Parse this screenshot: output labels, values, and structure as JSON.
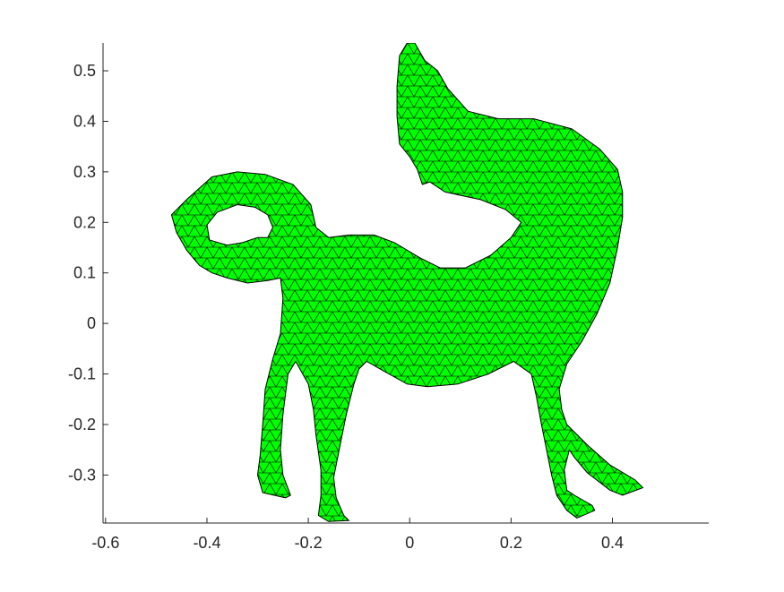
{
  "figure": {
    "background": "#ffffff",
    "mesh_fill": "#00ff00",
    "mesh_edge": "#000000",
    "axis_color": "#262626"
  },
  "axes": {
    "xlim": [
      -0.605,
      0.59
    ],
    "ylim": [
      -0.395,
      0.555
    ],
    "x_ticks": [
      {
        "value": -0.6,
        "label": "-0.6"
      },
      {
        "value": -0.4,
        "label": "-0.4"
      },
      {
        "value": -0.2,
        "label": "-0.2"
      },
      {
        "value": 0,
        "label": "0"
      },
      {
        "value": 0.2,
        "label": "0.2"
      },
      {
        "value": 0.4,
        "label": "0.4"
      }
    ],
    "y_ticks": [
      {
        "value": 0.5,
        "label": "0.5"
      },
      {
        "value": 0.4,
        "label": "0.4"
      },
      {
        "value": 0.3,
        "label": "0.3"
      },
      {
        "value": 0.2,
        "label": "0.2"
      },
      {
        "value": 0.1,
        "label": "0.1"
      },
      {
        "value": 0,
        "label": "0"
      },
      {
        "value": -0.1,
        "label": "-0.1"
      },
      {
        "value": -0.2,
        "label": "-0.2"
      },
      {
        "value": -0.3,
        "label": "-0.3"
      }
    ]
  },
  "shape": {
    "name": "triangulated horse mesh",
    "outline": [
      [
        -0.47,
        0.215
      ],
      [
        -0.44,
        0.245
      ],
      [
        -0.39,
        0.29
      ],
      [
        -0.34,
        0.3
      ],
      [
        -0.285,
        0.295
      ],
      [
        -0.23,
        0.275
      ],
      [
        -0.195,
        0.235
      ],
      [
        -0.185,
        0.19
      ],
      [
        -0.16,
        0.17
      ],
      [
        -0.12,
        0.175
      ],
      [
        -0.07,
        0.175
      ],
      [
        -0.03,
        0.16
      ],
      [
        0.02,
        0.13
      ],
      [
        0.06,
        0.11
      ],
      [
        0.11,
        0.11
      ],
      [
        0.16,
        0.135
      ],
      [
        0.2,
        0.17
      ],
      [
        0.22,
        0.2
      ],
      [
        0.19,
        0.225
      ],
      [
        0.14,
        0.245
      ],
      [
        0.07,
        0.26
      ],
      [
        0.04,
        0.28
      ],
      [
        0.025,
        0.275
      ],
      [
        0.015,
        0.305
      ],
      [
        0.0,
        0.33
      ],
      [
        -0.02,
        0.355
      ],
      [
        -0.025,
        0.41
      ],
      [
        -0.025,
        0.47
      ],
      [
        -0.02,
        0.53
      ],
      [
        -0.005,
        0.555
      ],
      [
        0.01,
        0.555
      ],
      [
        0.03,
        0.52
      ],
      [
        0.055,
        0.5
      ],
      [
        0.075,
        0.465
      ],
      [
        0.115,
        0.42
      ],
      [
        0.175,
        0.405
      ],
      [
        0.245,
        0.405
      ],
      [
        0.32,
        0.385
      ],
      [
        0.375,
        0.345
      ],
      [
        0.41,
        0.305
      ],
      [
        0.42,
        0.26
      ],
      [
        0.42,
        0.21
      ],
      [
        0.41,
        0.15
      ],
      [
        0.395,
        0.08
      ],
      [
        0.37,
        0.02
      ],
      [
        0.34,
        -0.035
      ],
      [
        0.31,
        -0.08
      ],
      [
        0.295,
        -0.13
      ],
      [
        0.3,
        -0.17
      ],
      [
        0.31,
        -0.2
      ],
      [
        0.35,
        -0.24
      ],
      [
        0.395,
        -0.28
      ],
      [
        0.445,
        -0.31
      ],
      [
        0.46,
        -0.325
      ],
      [
        0.42,
        -0.34
      ],
      [
        0.395,
        -0.33
      ],
      [
        0.35,
        -0.295
      ],
      [
        0.325,
        -0.265
      ],
      [
        0.315,
        -0.25
      ],
      [
        0.305,
        -0.29
      ],
      [
        0.31,
        -0.33
      ],
      [
        0.325,
        -0.34
      ],
      [
        0.36,
        -0.36
      ],
      [
        0.365,
        -0.37
      ],
      [
        0.33,
        -0.385
      ],
      [
        0.31,
        -0.37
      ],
      [
        0.29,
        -0.34
      ],
      [
        0.28,
        -0.3
      ],
      [
        0.27,
        -0.25
      ],
      [
        0.26,
        -0.2
      ],
      [
        0.25,
        -0.145
      ],
      [
        0.24,
        -0.1
      ],
      [
        0.205,
        -0.075
      ],
      [
        0.155,
        -0.1
      ],
      [
        0.095,
        -0.12
      ],
      [
        0.035,
        -0.125
      ],
      [
        -0.005,
        -0.12
      ],
      [
        -0.05,
        -0.095
      ],
      [
        -0.085,
        -0.075
      ],
      [
        -0.1,
        -0.09
      ],
      [
        -0.11,
        -0.12
      ],
      [
        -0.125,
        -0.18
      ],
      [
        -0.14,
        -0.255
      ],
      [
        -0.15,
        -0.305
      ],
      [
        -0.145,
        -0.345
      ],
      [
        -0.13,
        -0.38
      ],
      [
        -0.12,
        -0.39
      ],
      [
        -0.16,
        -0.392
      ],
      [
        -0.18,
        -0.38
      ],
      [
        -0.175,
        -0.34
      ],
      [
        -0.175,
        -0.29
      ],
      [
        -0.185,
        -0.22
      ],
      [
        -0.19,
        -0.17
      ],
      [
        -0.2,
        -0.12
      ],
      [
        -0.225,
        -0.075
      ],
      [
        -0.24,
        -0.1
      ],
      [
        -0.25,
        -0.18
      ],
      [
        -0.255,
        -0.25
      ],
      [
        -0.25,
        -0.3
      ],
      [
        -0.235,
        -0.34
      ],
      [
        -0.245,
        -0.345
      ],
      [
        -0.29,
        -0.335
      ],
      [
        -0.3,
        -0.3
      ],
      [
        -0.295,
        -0.26
      ],
      [
        -0.29,
        -0.2
      ],
      [
        -0.285,
        -0.13
      ],
      [
        -0.27,
        -0.07
      ],
      [
        -0.255,
        -0.02
      ],
      [
        -0.25,
        0.05
      ],
      [
        -0.255,
        0.09
      ],
      [
        -0.28,
        0.085
      ],
      [
        -0.32,
        0.08
      ],
      [
        -0.36,
        0.09
      ],
      [
        -0.39,
        0.1
      ],
      [
        -0.415,
        0.115
      ],
      [
        -0.44,
        0.145
      ],
      [
        -0.46,
        0.18
      ]
    ],
    "hole": [
      [
        -0.395,
        0.165
      ],
      [
        -0.4,
        0.195
      ],
      [
        -0.38,
        0.22
      ],
      [
        -0.34,
        0.235
      ],
      [
        -0.305,
        0.23
      ],
      [
        -0.28,
        0.215
      ],
      [
        -0.27,
        0.19
      ],
      [
        -0.28,
        0.17
      ],
      [
        -0.3,
        0.17
      ],
      [
        -0.33,
        0.16
      ],
      [
        -0.36,
        0.155
      ]
    ]
  }
}
